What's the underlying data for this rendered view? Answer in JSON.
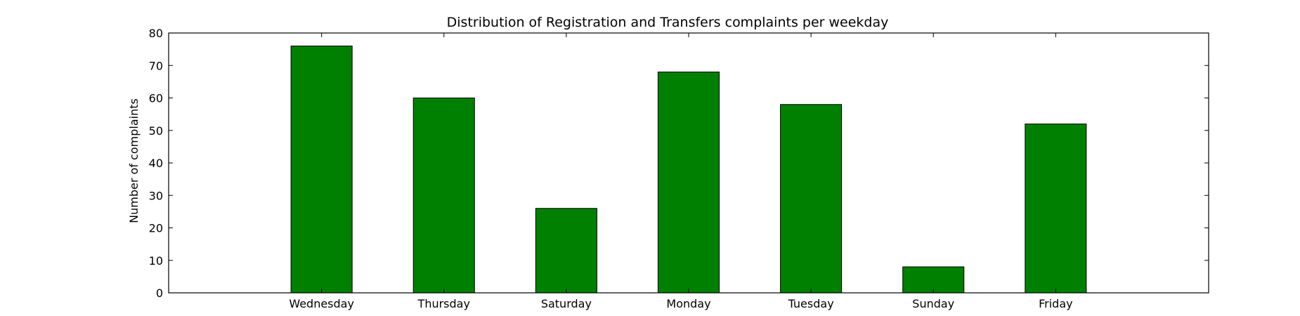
{
  "chart_data": {
    "type": "bar",
    "title": "Distribution of  Registration and Transfers complaints per weekday",
    "xlabel": "",
    "ylabel": "Number of complaints",
    "categories": [
      "Wednesday",
      "Thursday",
      "Saturday",
      "Monday",
      "Tuesday",
      "Sunday",
      "Friday"
    ],
    "values": [
      76,
      60,
      26,
      68,
      58,
      8,
      52
    ],
    "ylim": [
      0,
      80
    ],
    "yticks": [
      0,
      10,
      20,
      30,
      40,
      50,
      60,
      70,
      80
    ],
    "bar_color": "#008000",
    "edge_color": "#000000",
    "grid": false,
    "legend": "none"
  }
}
